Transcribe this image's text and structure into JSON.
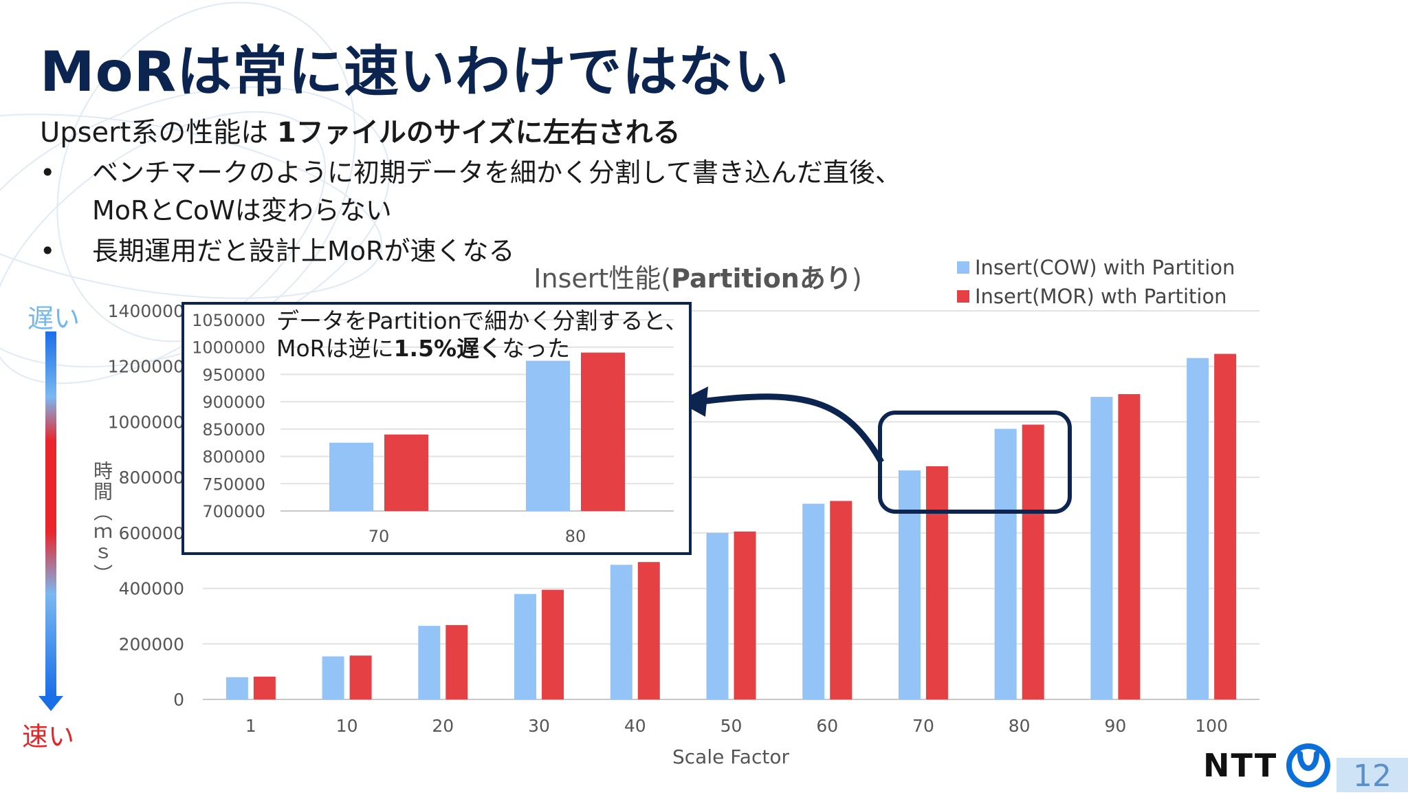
{
  "title": "MoRは常に速いわけではない",
  "subtitle": {
    "prefix": "Upsert系の性能は",
    "bold": "1ファイルのサイズに左右される"
  },
  "bullets": [
    {
      "mark": "•",
      "line1": "ベンチマークのように初期データを細かく分割して書き込んだ直後、",
      "line2": "MoRとCoWは変わらない"
    },
    {
      "mark": "•",
      "line1": "長期運用だと設計上MoRが速くなる",
      "line2": ""
    }
  ],
  "labels": {
    "slow": "遅い",
    "fast": "速い",
    "ylabel": "時間（ｍｓ）"
  },
  "inset_note": {
    "line1": "データをPartitionで細かく分割すると、",
    "line2_prefix": "MoRは逆に",
    "line2_bold": "1.5%遅く",
    "line2_suffix": "なった"
  },
  "logo": "NTT",
  "page_number": "12",
  "colors": {
    "cow": "#94c4f7",
    "mor": "#e54044",
    "title": "#0b2450",
    "highlight": "#0b2450"
  },
  "chart_data": [
    {
      "type": "bar",
      "title_prefix": "Insert性能(",
      "title_bold": "Partitionあり",
      "title_suffix": ")",
      "xlabel": "Scale Factor",
      "ylabel": "時間（ｍｓ）",
      "categories": [
        "1",
        "10",
        "20",
        "30",
        "40",
        "50",
        "60",
        "70",
        "80",
        "90",
        "100"
      ],
      "ylim": [
        0,
        1400000
      ],
      "yticks": [
        0,
        200000,
        400000,
        600000,
        800000,
        1000000,
        1200000,
        1400000
      ],
      "legend_position": "top-right",
      "grid": true,
      "series": [
        {
          "name": "Insert(COW) with Partition",
          "color": "#94c4f7",
          "values": [
            80000,
            155000,
            265000,
            380000,
            485000,
            600000,
            705000,
            825000,
            975000,
            1090000,
            1230000
          ]
        },
        {
          "name": "Insert(MOR) wth Partition",
          "color": "#e54044",
          "values": [
            82000,
            158000,
            268000,
            395000,
            495000,
            605000,
            715000,
            840000,
            990000,
            1100000,
            1245000
          ]
        }
      ]
    },
    {
      "type": "bar",
      "categories": [
        "70",
        "80"
      ],
      "ylim": [
        700000,
        1050000
      ],
      "yticks": [
        700000,
        750000,
        800000,
        850000,
        900000,
        950000,
        1000000,
        1050000
      ],
      "grid": true,
      "series": [
        {
          "name": "Insert(COW) with Partition",
          "color": "#94c4f7",
          "values": [
            825000,
            975000
          ]
        },
        {
          "name": "Insert(MOR) wth Partition",
          "color": "#e54044",
          "values": [
            840000,
            990000
          ]
        }
      ]
    }
  ]
}
